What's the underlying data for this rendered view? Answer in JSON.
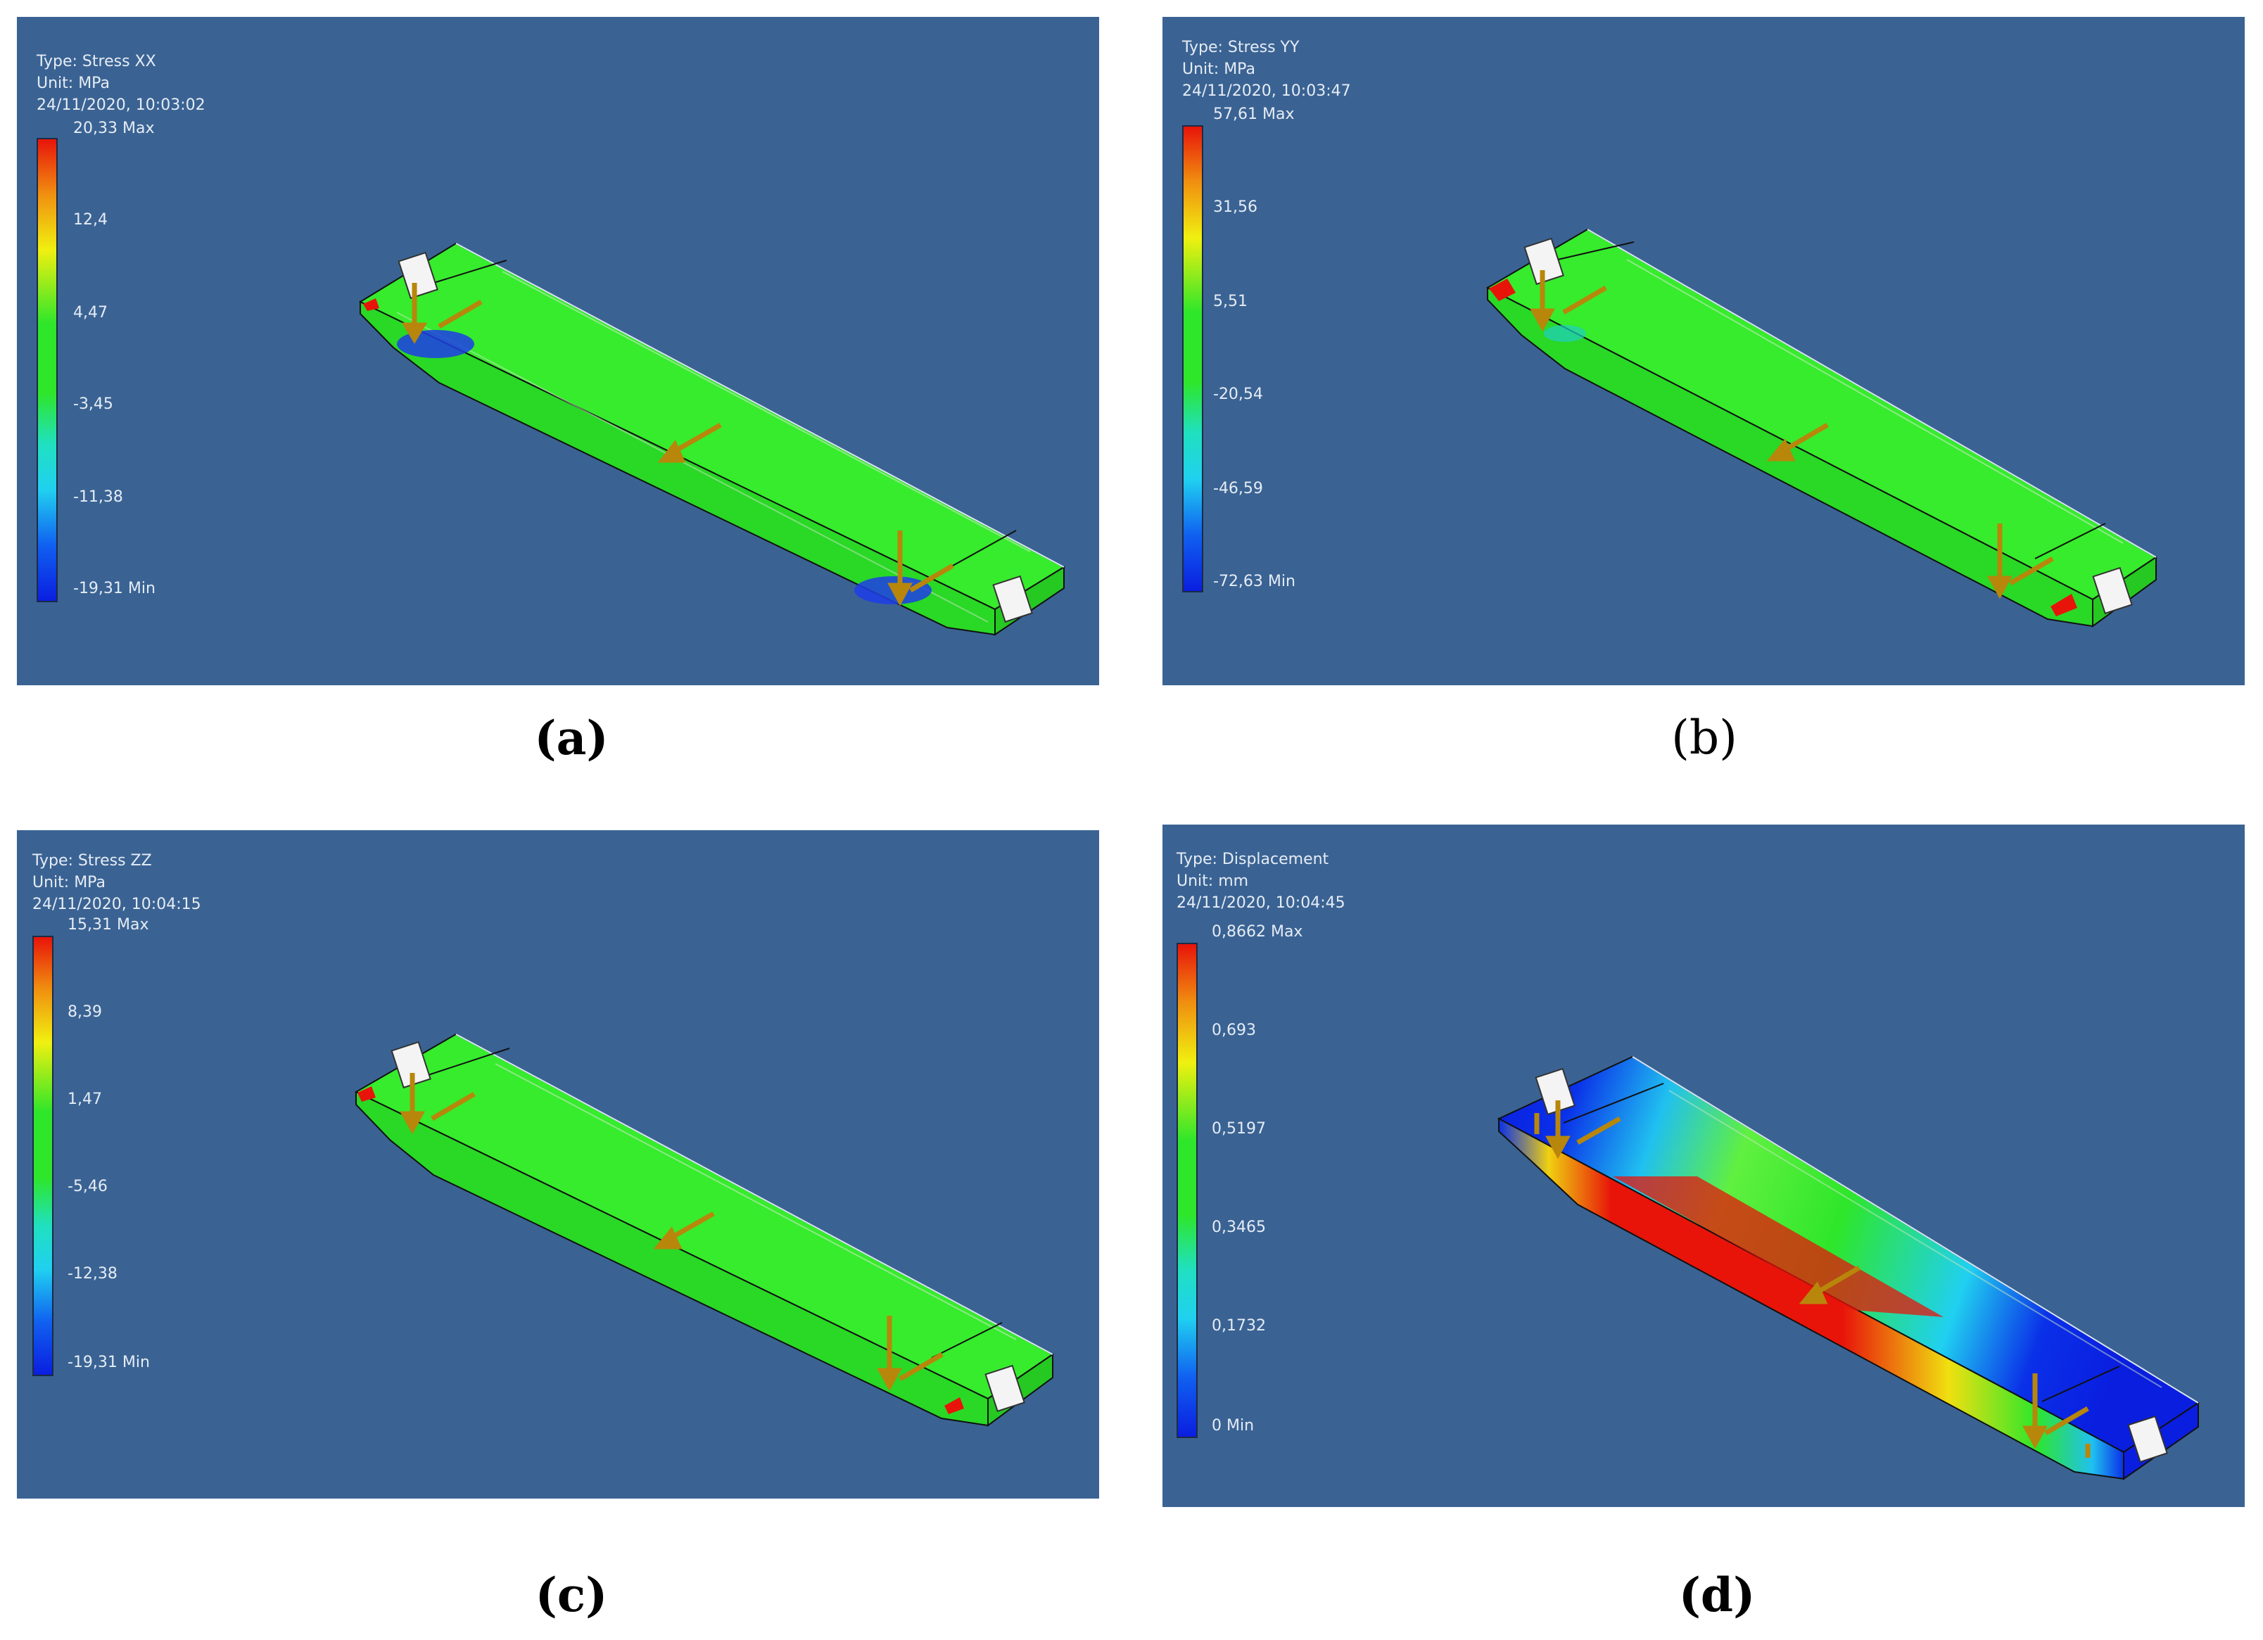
{
  "panels": [
    {
      "id": "a",
      "caption": "(a)",
      "type_label": "Type: Stress XX",
      "unit_label": "Unit: MPa",
      "timestamp": "24/11/2020, 10:03:02",
      "legend_values": [
        "20,33 Max",
        "12,4",
        "4,47",
        "-3,45",
        "-11,38",
        "-19,31 Min"
      ],
      "contour": "stress-xx"
    },
    {
      "id": "b",
      "caption": "(b)",
      "type_label": "Type: Stress YY",
      "unit_label": "Unit: MPa",
      "timestamp": "24/11/2020, 10:03:47",
      "legend_values": [
        "57,61 Max",
        "31,56",
        "5,51",
        "-20,54",
        "-46,59",
        "-72,63 Min"
      ],
      "contour": "stress-yy"
    },
    {
      "id": "c",
      "caption": "(c)",
      "type_label": "Type: Stress ZZ",
      "unit_label": "Unit: MPa",
      "timestamp": "24/11/2020, 10:04:15",
      "legend_values": [
        "15,31 Max",
        "8,39",
        "1,47",
        "-5,46",
        "-12,38",
        "-19,31 Min"
      ],
      "contour": "stress-zz"
    },
    {
      "id": "d",
      "caption": "(d)",
      "type_label": "Type: Displacement",
      "unit_label": "Unit: mm",
      "timestamp": "24/11/2020, 10:04:45",
      "legend_values": [
        "0,8662 Max",
        "0,693",
        "0,5197",
        "0,3465",
        "0,1732",
        "0 Min"
      ],
      "contour": "displacement"
    }
  ],
  "colors": {
    "background": "#3a6393",
    "beam_green": "#2ee62a",
    "load_arrow": "#b8860b",
    "max_red": "#e8140a",
    "min_blue": "#0a1ee0"
  }
}
